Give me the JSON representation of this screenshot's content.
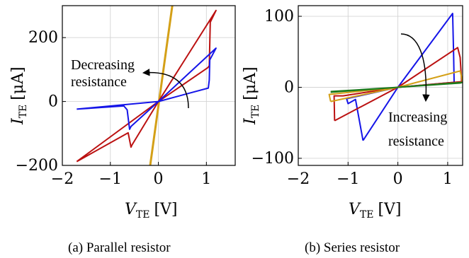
{
  "chart_data": [
    {
      "type": "line",
      "caption": "(a) Parallel resistor",
      "xlabel": {
        "symbol": "V",
        "sub": "TE",
        "unit": "[V]"
      },
      "ylabel": {
        "symbol": "I",
        "sub": "TE",
        "unit": "[μA]"
      },
      "xlim": [
        -2,
        1.6
      ],
      "ylim": [
        -200,
        300
      ],
      "xticks": [
        {
          "value": -2,
          "label": "−2"
        },
        {
          "value": -1,
          "label": "−1"
        },
        {
          "value": 0,
          "label": "0"
        },
        {
          "value": 1,
          "label": "1"
        }
      ],
      "yticks": [
        {
          "value": -200,
          "label": "−200"
        },
        {
          "value": 0,
          "label": "0"
        },
        {
          "value": 200,
          "label": "200"
        }
      ],
      "grid": true,
      "annotation": {
        "lines": [
          "Decreasing",
          "resistance"
        ],
        "arrow": "curved, from lower-right toward upper-left"
      },
      "series": [
        {
          "color": "#d4a017",
          "points": [
            [
              -0.17,
              -200
            ],
            [
              0.29,
              300
            ]
          ]
        },
        {
          "color": "#bb1111",
          "points": [
            [
              -1.7,
              -188
            ],
            [
              -0.63,
              -98
            ],
            [
              -0.57,
              -143
            ],
            [
              -0.55,
              -136
            ],
            [
              0,
              0
            ],
            [
              1.03,
              106
            ],
            [
              1.06,
              112
            ],
            [
              1.08,
              248
            ],
            [
              1.2,
              285
            ],
            [
              0,
              0
            ],
            [
              -1.7,
              -188
            ]
          ]
        },
        {
          "color": "#1515e8",
          "points": [
            [
              -1.7,
              -24
            ],
            [
              -0.72,
              -14
            ],
            [
              -0.65,
              -26
            ],
            [
              -0.6,
              -87
            ],
            [
              -0.57,
              -78
            ],
            [
              0,
              0
            ],
            [
              1.04,
              42
            ],
            [
              1.06,
              67
            ],
            [
              1.07,
              130
            ],
            [
              1.2,
              167
            ],
            [
              0,
              0
            ],
            [
              -1.7,
              -24
            ]
          ]
        }
      ]
    },
    {
      "type": "line",
      "caption": "(b) Series resistor",
      "xlabel": {
        "symbol": "V",
        "sub": "TE",
        "unit": "[V]"
      },
      "ylabel": {
        "symbol": "I",
        "sub": "TE",
        "unit": "[μA]"
      },
      "xlim": [
        -2,
        1.3
      ],
      "ylim": [
        -110,
        115
      ],
      "xticks": [
        {
          "value": -2,
          "label": "−2"
        },
        {
          "value": -1,
          "label": "−1"
        },
        {
          "value": 0,
          "label": "0"
        },
        {
          "value": 1,
          "label": "1"
        }
      ],
      "yticks": [
        {
          "value": -100,
          "label": "−100"
        },
        {
          "value": 0,
          "label": "0"
        },
        {
          "value": 100,
          "label": "100"
        }
      ],
      "grid": true,
      "annotation": {
        "lines": [
          "Increasing",
          "resistance"
        ],
        "arrow": "curved, from upper-left pointing down"
      },
      "series": [
        {
          "color": "#1515e8",
          "points": [
            [
              -0.7,
              -75
            ],
            [
              -0.85,
              -17
            ],
            [
              -1.0,
              -23
            ],
            [
              -1.03,
              -16
            ],
            [
              0,
              0
            ],
            [
              1.1,
              104
            ],
            [
              1.12,
              45
            ],
            [
              1.13,
              7
            ],
            [
              0,
              0
            ],
            [
              -0.7,
              -75
            ]
          ]
        },
        {
          "color": "#bb1111",
          "points": [
            [
              -1.27,
              -47
            ],
            [
              -1.28,
              -12
            ],
            [
              -1.1,
              -12
            ],
            [
              0,
              0
            ],
            [
              1.2,
              56
            ],
            [
              1.25,
              42
            ],
            [
              1.28,
              8
            ],
            [
              0,
              0
            ],
            [
              -1.27,
              -47
            ]
          ]
        },
        {
          "color": "#d4a017",
          "points": [
            [
              -1.35,
              -20
            ],
            [
              -1.38,
              -10
            ],
            [
              -1.25,
              -9
            ],
            [
              0,
              0
            ],
            [
              1.25,
              23
            ],
            [
              1.28,
              14
            ],
            [
              1.3,
              7
            ],
            [
              0,
              0
            ],
            [
              -1.35,
              -20
            ]
          ]
        },
        {
          "color": "#1b7a1b",
          "points": [
            [
              -1.35,
              -7
            ],
            [
              0,
              0
            ],
            [
              1.3,
              7
            ],
            [
              1.25,
              6
            ],
            [
              0,
              0
            ],
            [
              -1.35,
              -6
            ]
          ]
        }
      ]
    }
  ]
}
